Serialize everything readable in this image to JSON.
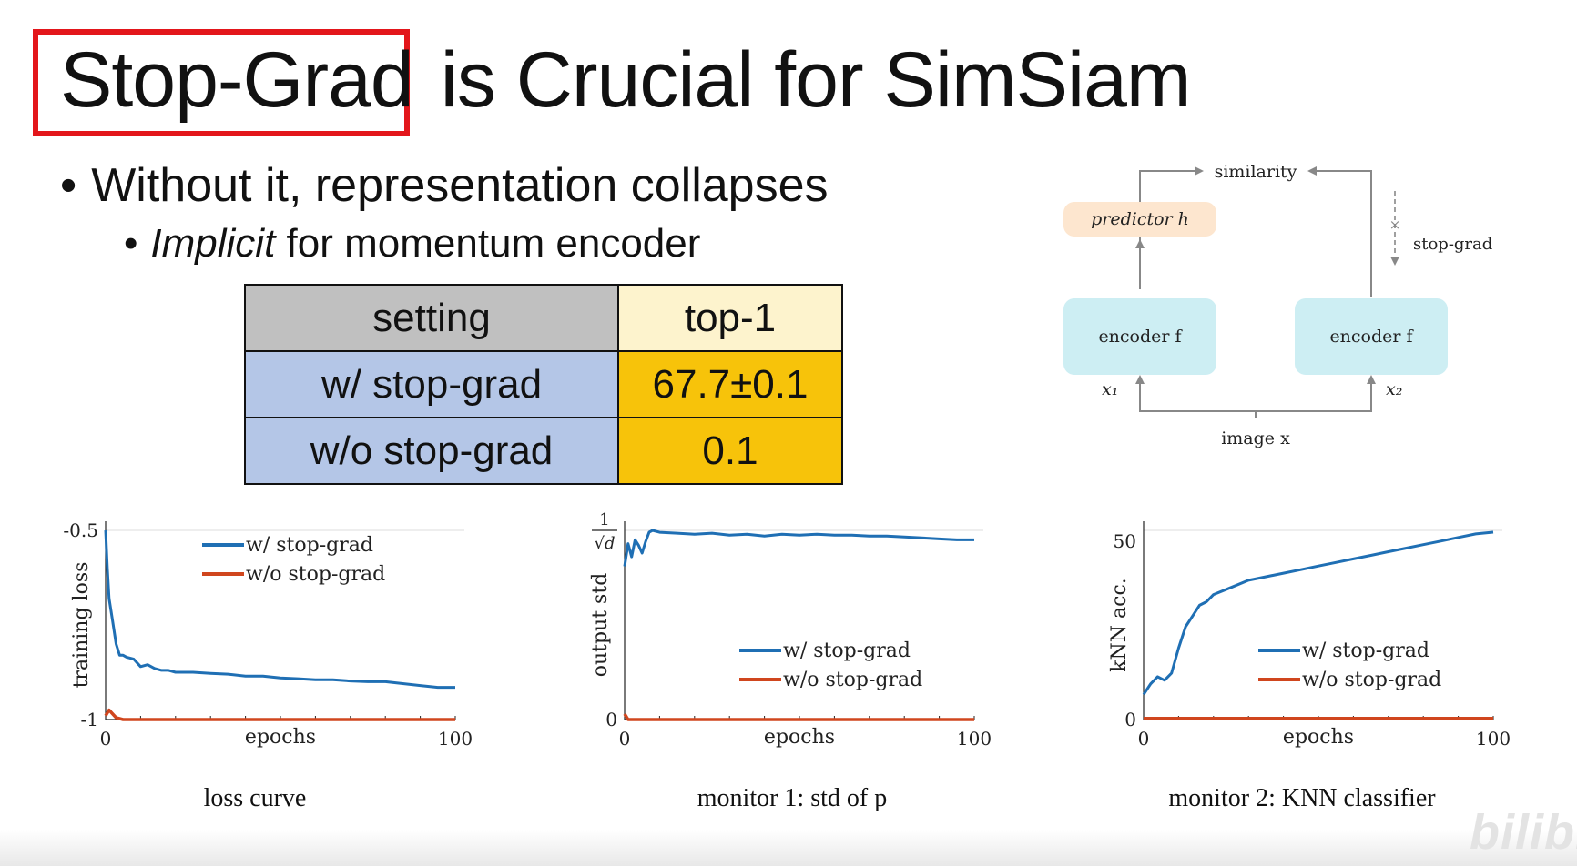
{
  "title": {
    "highlighted": "Stop-Grad",
    "rest": "is Crucial for SimSiam"
  },
  "bullets": {
    "level1": "Without it, representation collapses",
    "level2_emphasis": "Implicit",
    "level2_rest": " for momentum encoder",
    "marker": "•"
  },
  "table": {
    "headers": [
      "setting",
      "top-1"
    ],
    "rows": [
      [
        "w/ stop-grad",
        "67.7±0.1"
      ],
      [
        "w/o stop-grad",
        "0.1"
      ]
    ]
  },
  "diagram": {
    "similarity": "similarity",
    "stop_grad": "stop-grad",
    "predictor": "predictor h",
    "encoder_left": "encoder f",
    "encoder_right": "encoder f",
    "x1": "x₁",
    "x2": "x₂",
    "image": "image x",
    "colors": {
      "predictor": "#fde6cf",
      "encoder": "#cdeef3",
      "arrow": "#888888"
    }
  },
  "chart_data": [
    {
      "type": "line",
      "caption": "loss curve",
      "xlabel": "epochs",
      "ylabel": "training loss",
      "xticks": [
        "0",
        "100"
      ],
      "yticks": [
        "-0.5",
        "-1"
      ],
      "xlim": [
        0,
        100
      ],
      "ylim": [
        -1,
        -0.5
      ],
      "legend_position": "top-right",
      "series": [
        {
          "name": "w/ stop-grad",
          "color": "#1f6fb4",
          "x": [
            0,
            0.5,
            1,
            2,
            3,
            4,
            5,
            6,
            8,
            10,
            12,
            14,
            16,
            18,
            20,
            25,
            30,
            35,
            40,
            45,
            50,
            55,
            60,
            65,
            70,
            75,
            80,
            85,
            90,
            95,
            100
          ],
          "y": [
            -0.5,
            -0.6,
            -0.68,
            -0.74,
            -0.8,
            -0.83,
            -0.83,
            -0.835,
            -0.84,
            -0.86,
            -0.855,
            -0.865,
            -0.87,
            -0.87,
            -0.875,
            -0.875,
            -0.878,
            -0.88,
            -0.885,
            -0.885,
            -0.89,
            -0.892,
            -0.895,
            -0.895,
            -0.898,
            -0.9,
            -0.9,
            -0.905,
            -0.91,
            -0.915,
            -0.915
          ]
        },
        {
          "name": "w/o stop-grad",
          "color": "#d0461e",
          "x": [
            0,
            1,
            2,
            3,
            5,
            10,
            100
          ],
          "y": [
            -0.99,
            -0.975,
            -0.985,
            -0.995,
            -1.0,
            -1.0,
            -1.0
          ]
        }
      ]
    },
    {
      "type": "line",
      "caption": "monitor 1: std of p",
      "xlabel": "epochs",
      "ylabel": "output std",
      "xticks": [
        "0",
        "100"
      ],
      "yticks": [
        "0"
      ],
      "ytick_top_numerator": "1",
      "ytick_top_denominator": "√d",
      "xlim": [
        0,
        100
      ],
      "ylim": [
        0,
        1
      ],
      "legend_position": "bottom-right",
      "series": [
        {
          "name": "w/ stop-grad",
          "color": "#1f6fb4",
          "x": [
            0,
            1,
            2,
            3,
            4,
            5,
            6,
            7,
            8,
            10,
            15,
            20,
            25,
            30,
            35,
            40,
            45,
            50,
            55,
            60,
            65,
            70,
            75,
            80,
            85,
            90,
            95,
            100
          ],
          "y": [
            0.81,
            0.93,
            0.86,
            0.95,
            0.92,
            0.88,
            0.94,
            0.99,
            1.0,
            0.99,
            0.985,
            0.98,
            0.985,
            0.975,
            0.98,
            0.97,
            0.98,
            0.975,
            0.98,
            0.975,
            0.975,
            0.97,
            0.97,
            0.965,
            0.96,
            0.955,
            0.95,
            0.95
          ]
        },
        {
          "name": "w/o stop-grad",
          "color": "#d0461e",
          "x": [
            0,
            1,
            2,
            100
          ],
          "y": [
            0.03,
            0.0,
            0.0,
            0.0
          ]
        }
      ]
    },
    {
      "type": "line",
      "caption": "monitor 2: KNN classifier",
      "xlabel": "epochs",
      "ylabel": "kNN acc.",
      "xticks": [
        "0",
        "100"
      ],
      "yticks": [
        "50",
        "0"
      ],
      "xlim": [
        0,
        100
      ],
      "ylim": [
        0,
        53
      ],
      "legend_position": "bottom-right",
      "series": [
        {
          "name": "w/ stop-grad",
          "color": "#1f6fb4",
          "x": [
            0,
            2,
            4,
            6,
            8,
            10,
            12,
            14,
            16,
            18,
            20,
            25,
            30,
            35,
            40,
            45,
            50,
            55,
            60,
            65,
            70,
            75,
            80,
            85,
            90,
            95,
            100
          ],
          "y": [
            7,
            10,
            12,
            11,
            13,
            20,
            26,
            29,
            32,
            33,
            35,
            37,
            39,
            40,
            41,
            42,
            43,
            44,
            45,
            46,
            47,
            48,
            49,
            50,
            51,
            52,
            52.5
          ]
        },
        {
          "name": "w/o stop-grad",
          "color": "#d0461e",
          "x": [
            0,
            100
          ],
          "y": [
            0.3,
            0.3
          ]
        }
      ]
    }
  ],
  "watermark": "bilibili"
}
